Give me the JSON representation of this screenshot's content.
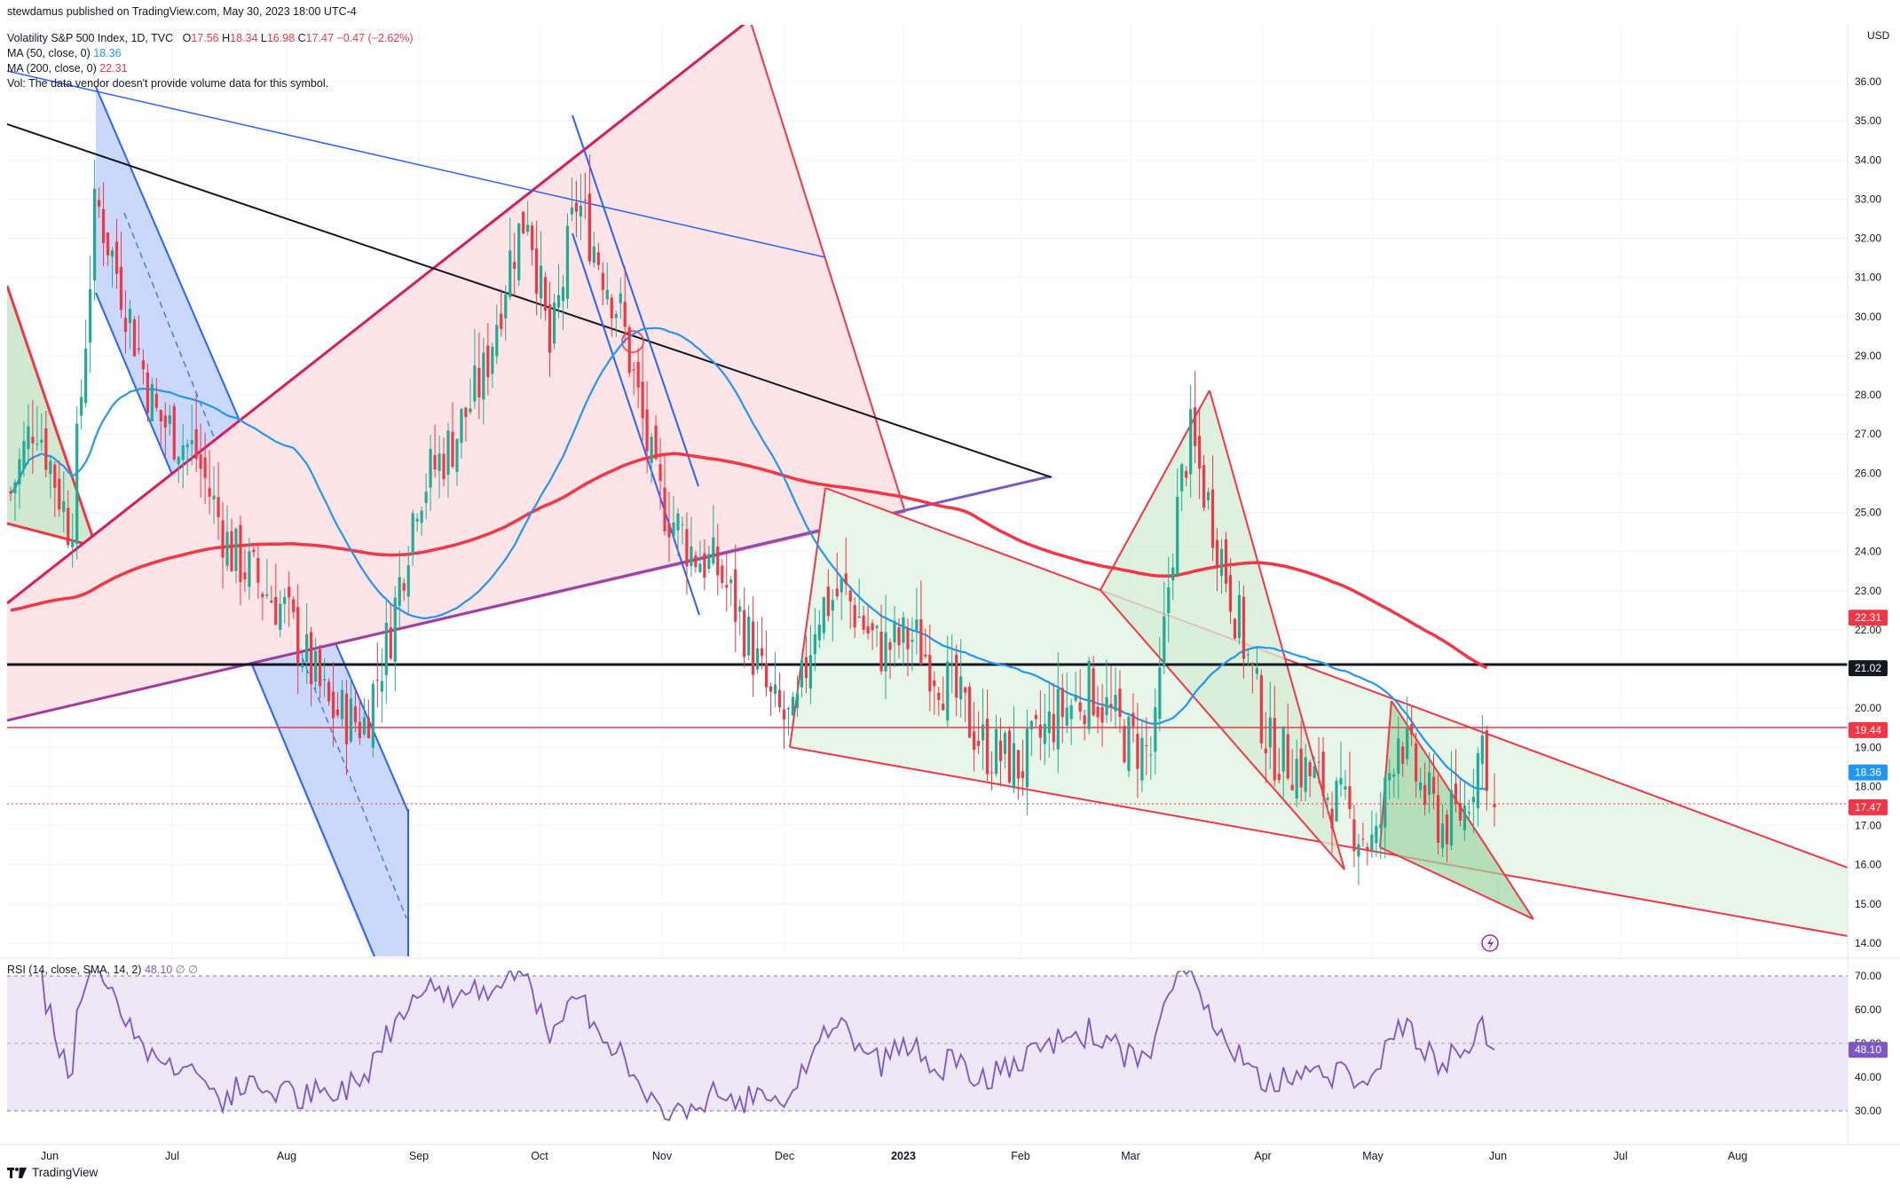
{
  "header": {
    "publisher": "stewdamus published on TradingView.com, May 30, 2023 18:00 UTC-4",
    "symbol": "Volatility S&P 500 Index, 1D, TVC",
    "ohlc": {
      "o_label": "O",
      "o": "17.56",
      "h_label": "H",
      "h": "18.34",
      "l_label": "L",
      "l": "16.98",
      "c_label": "C",
      "c": "17.47",
      "chg": "−0.47 (−2.62%)"
    },
    "ma50": {
      "label": "MA (50, close, 0)",
      "value": "18.36"
    },
    "ma200": {
      "label": "MA (200, close, 0)",
      "value": "22.31"
    },
    "vol": "Vol: The data vendor doesn't provide volume data for this symbol."
  },
  "colors": {
    "up": "#22ab94",
    "down": "#f23645",
    "ma50": "#2196f3",
    "ma200": "#f23645",
    "rsi": "#7e57c2",
    "rsi_band": "#ede7f6",
    "wedge_fill": "#e8f5e9",
    "red_fill": "#ffebee",
    "channel_fill": "#bbd0f7"
  },
  "chart_data": {
    "type": "candlestick",
    "currency": "USD",
    "y_ticks": [
      "14.00",
      "15.00",
      "16.00",
      "17.00",
      "18.00",
      "19.00",
      "20.00",
      "21.00",
      "22.00",
      "23.00",
      "24.00",
      "25.00",
      "26.00",
      "27.00",
      "28.00",
      "29.00",
      "30.00",
      "31.00",
      "32.00",
      "33.00",
      "34.00",
      "35.00",
      "36.00"
    ],
    "y_range": [
      14.0,
      36.0
    ],
    "x_labels": [
      "Jun",
      "Jul",
      "Aug",
      "Sep",
      "Oct",
      "Nov",
      "Dec",
      "2023",
      "Feb",
      "Mar",
      "Apr",
      "May",
      "Jun",
      "Jul",
      "Aug"
    ],
    "price_badges": [
      {
        "value": "22.31",
        "color": "#f23645"
      },
      {
        "value": "21.02",
        "color": "#131722"
      },
      {
        "value": "19.44",
        "color": "#f23645"
      },
      {
        "value": "18.36",
        "color": "#2196f3"
      },
      {
        "value": "17.47",
        "color": "#f23645"
      }
    ],
    "horizontal_levels": [
      21.02,
      19.44
    ],
    "last": {
      "open": 17.56,
      "high": 18.34,
      "low": 16.98,
      "close": 17.47
    },
    "key_prices": [
      {
        "date": "Jun 2022",
        "value": 34.0
      },
      {
        "date": "Jul 2022",
        "value": 27.0
      },
      {
        "date": "Aug 2022",
        "value": 19.5
      },
      {
        "date": "Sep 2022",
        "value": 26.0
      },
      {
        "date": "Oct 2022",
        "value": 33.5
      },
      {
        "date": "Nov 2022",
        "value": 24.0
      },
      {
        "date": "Dec 2022",
        "value": 19.0
      },
      {
        "date": "Jan 2023",
        "value": 21.5
      },
      {
        "date": "Feb 2023",
        "value": 18.5
      },
      {
        "date": "Mar 2023",
        "value": 28.5
      },
      {
        "date": "Apr 2023",
        "value": 18.5
      },
      {
        "date": "May 2023",
        "value": 16.5
      },
      {
        "date": "May 30 2023",
        "value": 17.47
      }
    ]
  },
  "rsi": {
    "label": "RSI (14, close, SMA, 14, 2)",
    "value": "48.10",
    "ticks": [
      "30.00",
      "40.00",
      "50.00",
      "60.00",
      "70.00"
    ],
    "upper": 70,
    "mid": 50,
    "lower": 30
  },
  "footer": {
    "logo": "TradingView"
  }
}
